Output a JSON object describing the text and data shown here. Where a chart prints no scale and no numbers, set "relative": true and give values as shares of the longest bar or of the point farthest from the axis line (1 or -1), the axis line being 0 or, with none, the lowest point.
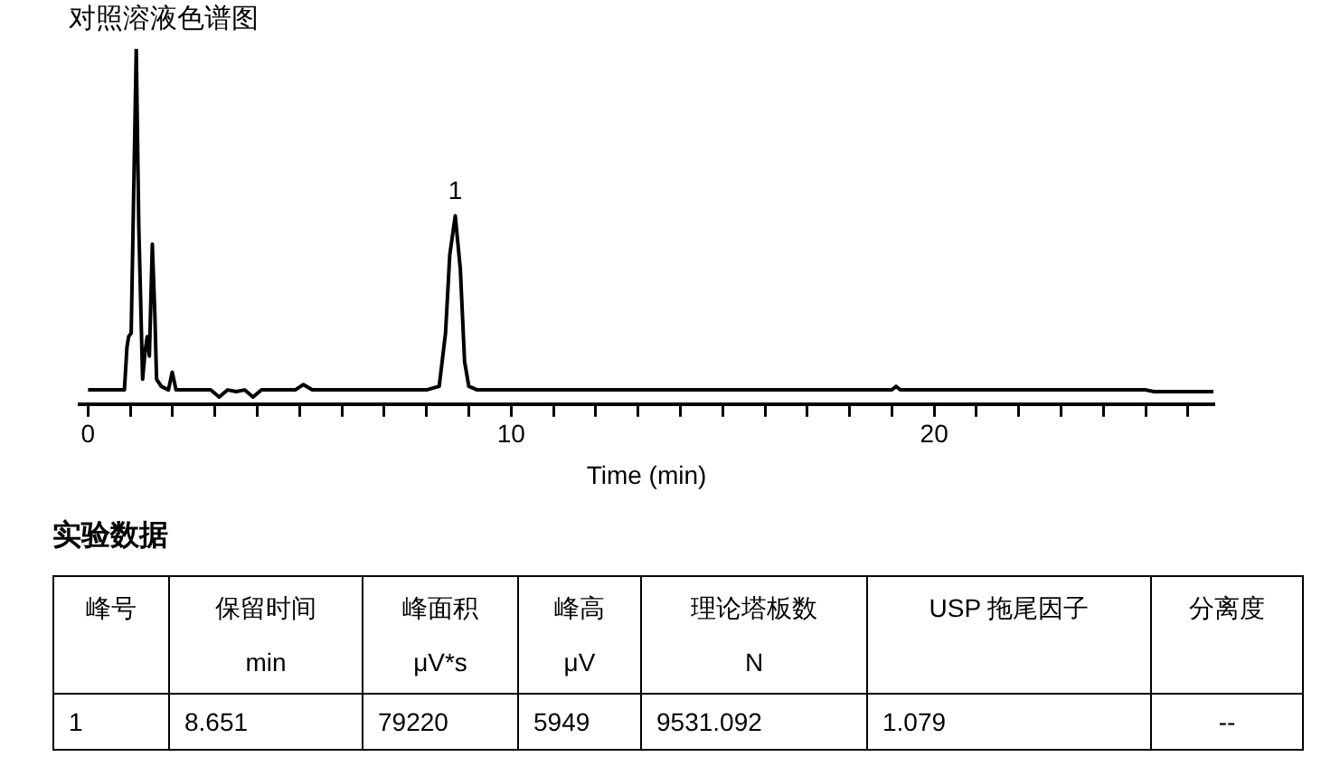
{
  "chart_data": [
    {
      "type": "line",
      "title": "对照溶液色谱图",
      "xlabel": "Time (min)",
      "relative": true,
      "color": "#000000",
      "marker": "none",
      "line_style": "solid",
      "grid": false,
      "legend": false,
      "x": [
        0.0,
        0.5,
        0.86,
        0.92,
        0.96,
        1.02,
        1.08,
        1.14,
        1.2,
        1.29,
        1.35,
        1.4,
        1.45,
        1.52,
        1.58,
        1.62,
        1.73,
        1.9,
        1.99,
        2.08,
        2.5,
        2.9,
        3.1,
        3.3,
        3.5,
        3.7,
        3.9,
        4.1,
        4.9,
        5.09,
        5.3,
        6.0,
        7.0,
        8.0,
        8.3,
        8.45,
        8.55,
        8.68,
        8.8,
        8.9,
        9.0,
        9.2,
        10.0,
        12.0,
        14.0,
        16.0,
        18.0,
        19.0,
        19.1,
        19.2,
        22.0,
        24.0,
        25.0,
        25.2,
        26.0,
        26.6
      ],
      "values": [
        0.04,
        0.04,
        0.04,
        0.16,
        0.19,
        0.2,
        0.6,
        1.0,
        0.5,
        0.07,
        0.15,
        0.19,
        0.135,
        0.45,
        0.25,
        0.07,
        0.05,
        0.04,
        0.09,
        0.04,
        0.04,
        0.04,
        0.02,
        0.04,
        0.035,
        0.04,
        0.02,
        0.04,
        0.04,
        0.055,
        0.04,
        0.04,
        0.04,
        0.04,
        0.05,
        0.2,
        0.42,
        0.53,
        0.38,
        0.12,
        0.05,
        0.04,
        0.04,
        0.04,
        0.04,
        0.04,
        0.04,
        0.04,
        0.05,
        0.04,
        0.04,
        0.04,
        0.04,
        0.035,
        0.035,
        0.035
      ],
      "xlim": [
        -0.2,
        26.6
      ],
      "xticks": [
        0,
        {
          "value": 1,
          "label": null
        },
        {
          "value": 2,
          "label": null
        },
        {
          "value": 3,
          "label": null
        },
        {
          "value": 4,
          "label": null
        },
        {
          "value": 5,
          "label": null
        },
        {
          "value": 6,
          "label": null
        },
        {
          "value": 7,
          "label": null
        },
        {
          "value": 8,
          "label": null
        },
        {
          "value": 9,
          "label": null
        },
        10,
        {
          "value": 11,
          "label": null
        },
        {
          "value": 12,
          "label": null
        },
        {
          "value": 13,
          "label": null
        },
        {
          "value": 14,
          "label": null
        },
        {
          "value": 15,
          "label": null
        },
        {
          "value": 16,
          "label": null
        },
        {
          "value": 17,
          "label": null
        },
        {
          "value": 18,
          "label": null
        },
        {
          "value": 19,
          "label": null
        },
        20,
        {
          "value": 21,
          "label": null
        },
        {
          "value": 22,
          "label": null
        },
        {
          "value": 23,
          "label": null
        },
        {
          "value": 24,
          "label": null
        },
        {
          "value": 25,
          "label": null
        },
        {
          "value": 26,
          "label": null
        }
      ],
      "annotations": [
        {
          "text": "1",
          "x": 8.68,
          "y": 0.53
        }
      ]
    },
    {
      "type": "other",
      "title": "实验数据",
      "categories": [
        "峰号",
        "保留时间\nmin",
        "峰面积\nμV*s",
        "峰高\nμV",
        "理论塔板数\nN",
        "USP 拖尾因子",
        "分离度"
      ],
      "annotations": [
        "1",
        "8.651",
        "79220",
        "5949",
        "9531.092",
        "1.079",
        "--"
      ]
    }
  ]
}
